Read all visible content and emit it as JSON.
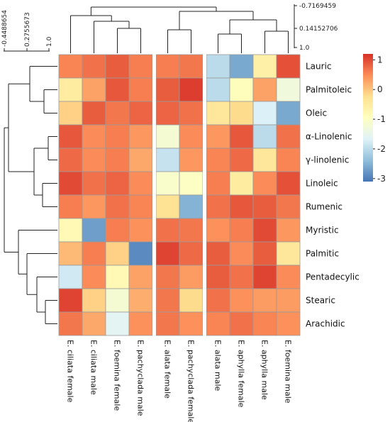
{
  "chart_data": {
    "type": "heatmap",
    "rows": [
      "Lauric",
      "Palmitoleic",
      "Oleic",
      "α-Linolenic",
      "γ-linolenic",
      "Linoleic",
      "Rumenic",
      "Myristic",
      "Palmitic",
      "Pentadecylic",
      "Stearic",
      "Arachidic"
    ],
    "columns": [
      "E. ciliata female",
      "E. ciliata male",
      "E. foemina female",
      "E. pachyclada male",
      "E. alata female",
      "E. pachyclada female",
      "E. alata male",
      "E. aphylla female",
      "E. aphylla male",
      "E. foemina male"
    ],
    "values": [
      [
        0.55,
        0.7,
        0.85,
        0.6,
        0.6,
        0.65,
        -2.0,
        -2.6,
        -0.6,
        0.95
      ],
      [
        -0.5,
        0.3,
        0.9,
        0.6,
        0.85,
        1.1,
        -2.0,
        -0.9,
        0.3,
        -1.3
      ],
      [
        -0.1,
        0.85,
        0.65,
        0.8,
        0.8,
        0.7,
        -0.4,
        -0.2,
        -1.7,
        -2.6
      ],
      [
        0.9,
        0.5,
        0.6,
        0.4,
        -1.2,
        0.5,
        0.4,
        0.9,
        -2.0,
        0.7
      ],
      [
        0.75,
        0.5,
        0.6,
        0.25,
        -1.9,
        0.4,
        0.55,
        0.75,
        -0.4,
        0.55
      ],
      [
        1.0,
        0.7,
        0.8,
        0.5,
        -1.1,
        -1.0,
        0.6,
        -0.5,
        0.5,
        0.95
      ],
      [
        0.6,
        0.4,
        0.7,
        0.55,
        -0.3,
        -2.5,
        0.7,
        0.9,
        0.85,
        0.65
      ],
      [
        -0.8,
        -2.7,
        0.6,
        0.45,
        0.7,
        0.65,
        0.45,
        0.6,
        1.0,
        0.4
      ],
      [
        0.1,
        0.6,
        -0.1,
        -2.9,
        1.05,
        0.75,
        0.85,
        0.5,
        0.85,
        -0.4
      ],
      [
        -1.8,
        0.5,
        -0.8,
        0.3,
        0.65,
        0.35,
        0.85,
        0.7,
        1.05,
        0.5
      ],
      [
        1.05,
        -0.1,
        -1.2,
        0.2,
        0.65,
        -0.2,
        0.7,
        0.45,
        0.35,
        0.35
      ],
      [
        0.65,
        0.25,
        -1.6,
        0.45,
        0.65,
        0.45,
        0.55,
        0.7,
        0.55,
        0.45
      ]
    ],
    "legend": {
      "ticks": [
        "1",
        "0",
        "-1",
        "-2",
        "-3"
      ],
      "min": -3.1,
      "max": 1.2,
      "colors": [
        "#4575b4",
        "#91bfdb",
        "#e0f3f8",
        "#ffffbf",
        "#fee090",
        "#fc8d59",
        "#d73027"
      ]
    },
    "top_scale": [
      "-0.7169459",
      "0.14152706",
      "1.0"
    ],
    "left_scale": [
      "-0.4488654",
      "0.2755673",
      "1.0"
    ]
  }
}
